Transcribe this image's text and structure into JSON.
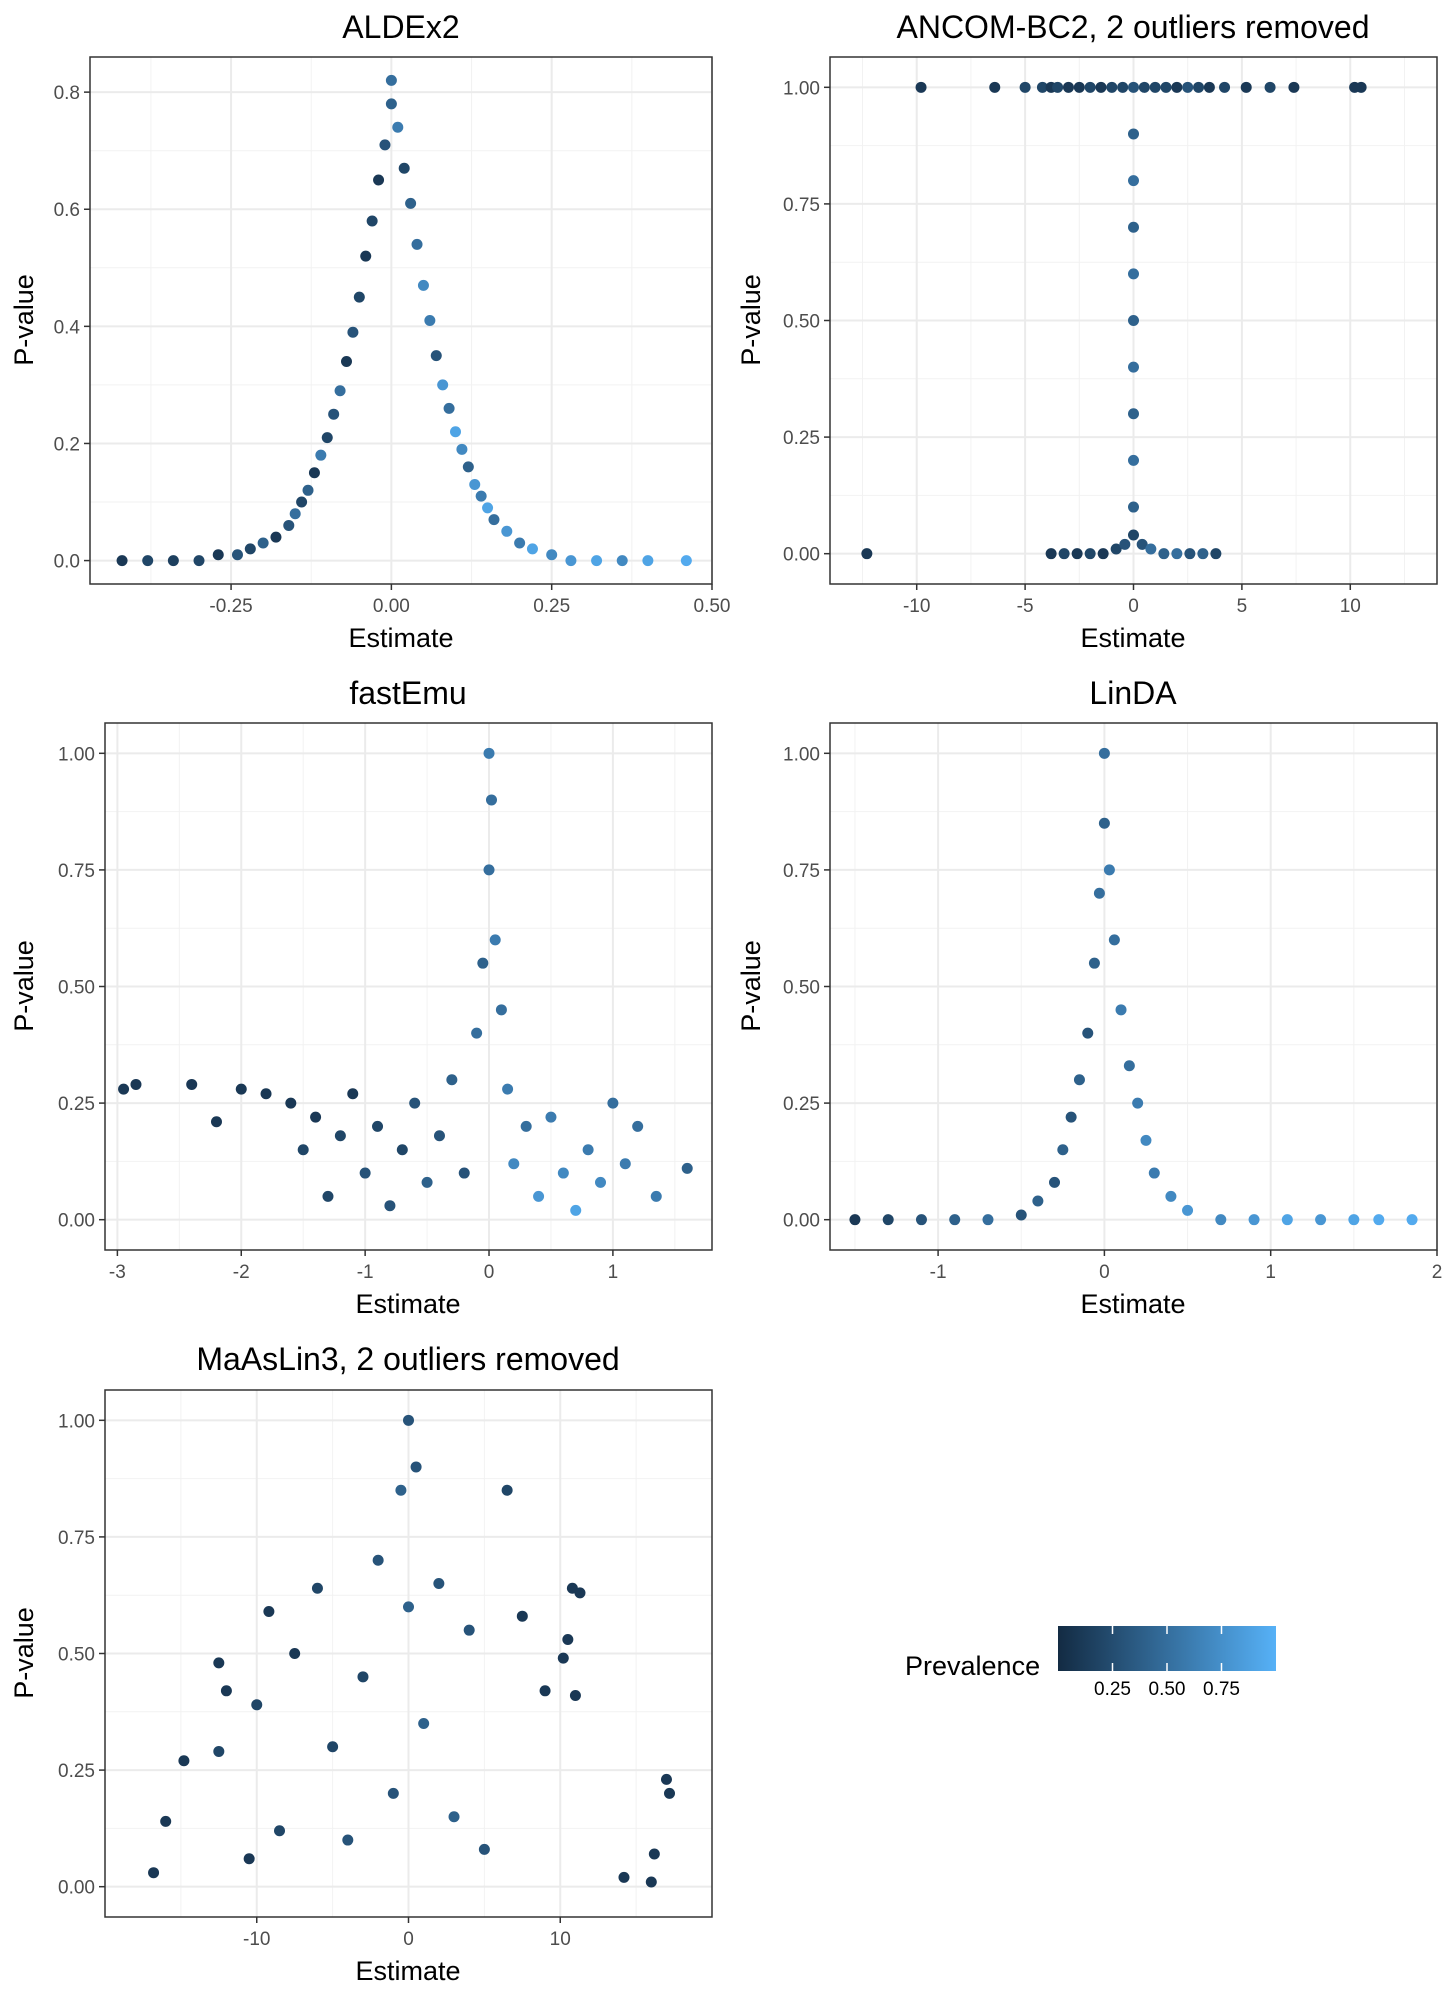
{
  "figure": {
    "description_labels": {
      "ylabel": "P-value",
      "xlabel": "Estimate"
    }
  },
  "legend": {
    "title": "Prevalence",
    "ticks": [
      "0.25",
      "0.50",
      "0.75"
    ],
    "range": [
      0.0,
      1.0
    ],
    "color_low": "#132B43",
    "color_high": "#56B1F7"
  },
  "chart_data": [
    {
      "id": "aldex2",
      "type": "scatter",
      "title": "ALDEx2",
      "xlabel": "Estimate",
      "ylabel": "P-value",
      "xlim": [
        -0.47,
        0.5
      ],
      "ylim": [
        -0.04,
        0.86
      ],
      "xticks": [
        -0.25,
        0.0,
        0.25,
        0.5
      ],
      "xtick_labels": [
        "-0.25",
        "0.00",
        "0.25",
        "0.50"
      ],
      "yticks": [
        0.0,
        0.2,
        0.4,
        0.6,
        0.8
      ],
      "ytick_labels": [
        "0.0",
        "0.2",
        "0.4",
        "0.6",
        "0.8"
      ],
      "points": [
        [
          -0.42,
          0.0,
          0.1
        ],
        [
          -0.38,
          0.0,
          0.2
        ],
        [
          -0.34,
          0.0,
          0.15
        ],
        [
          -0.3,
          0.0,
          0.2
        ],
        [
          -0.27,
          0.01,
          0.1
        ],
        [
          -0.24,
          0.01,
          0.3
        ],
        [
          -0.22,
          0.02,
          0.2
        ],
        [
          -0.2,
          0.03,
          0.4
        ],
        [
          -0.18,
          0.04,
          0.1
        ],
        [
          -0.16,
          0.06,
          0.3
        ],
        [
          -0.15,
          0.08,
          0.5
        ],
        [
          -0.14,
          0.1,
          0.2
        ],
        [
          -0.13,
          0.12,
          0.4
        ],
        [
          -0.12,
          0.15,
          0.1
        ],
        [
          -0.11,
          0.18,
          0.6
        ],
        [
          -0.1,
          0.21,
          0.2
        ],
        [
          -0.09,
          0.25,
          0.3
        ],
        [
          -0.08,
          0.29,
          0.5
        ],
        [
          -0.07,
          0.34,
          0.1
        ],
        [
          -0.06,
          0.39,
          0.3
        ],
        [
          -0.05,
          0.45,
          0.2
        ],
        [
          -0.04,
          0.52,
          0.1
        ],
        [
          -0.03,
          0.58,
          0.2
        ],
        [
          -0.02,
          0.65,
          0.1
        ],
        [
          -0.01,
          0.71,
          0.3
        ],
        [
          0.0,
          0.78,
          0.4
        ],
        [
          0.0,
          0.82,
          0.5
        ],
        [
          0.01,
          0.74,
          0.6
        ],
        [
          0.02,
          0.67,
          0.2
        ],
        [
          0.03,
          0.61,
          0.4
        ],
        [
          0.04,
          0.54,
          0.5
        ],
        [
          0.05,
          0.47,
          0.7
        ],
        [
          0.06,
          0.41,
          0.6
        ],
        [
          0.07,
          0.35,
          0.3
        ],
        [
          0.08,
          0.3,
          0.8
        ],
        [
          0.09,
          0.26,
          0.5
        ],
        [
          0.1,
          0.22,
          0.9
        ],
        [
          0.11,
          0.19,
          0.7
        ],
        [
          0.12,
          0.16,
          0.4
        ],
        [
          0.13,
          0.13,
          0.8
        ],
        [
          0.14,
          0.11,
          0.6
        ],
        [
          0.15,
          0.09,
          0.9
        ],
        [
          0.16,
          0.07,
          0.5
        ],
        [
          0.18,
          0.05,
          0.8
        ],
        [
          0.2,
          0.03,
          0.6
        ],
        [
          0.22,
          0.02,
          0.9
        ],
        [
          0.25,
          0.01,
          0.7
        ],
        [
          0.28,
          0.0,
          0.8
        ],
        [
          0.32,
          0.0,
          0.9
        ],
        [
          0.36,
          0.0,
          0.7
        ],
        [
          0.4,
          0.0,
          0.9
        ],
        [
          0.46,
          0.0,
          0.95
        ]
      ]
    },
    {
      "id": "ancombc2",
      "type": "scatter",
      "title": "ANCOM-BC2, 2 outliers removed",
      "xlabel": "Estimate",
      "ylabel": "P-value",
      "xlim": [
        -14.0,
        14.0
      ],
      "ylim": [
        -0.065,
        1.065
      ],
      "xticks": [
        -10,
        -5,
        0,
        5,
        10
      ],
      "xtick_labels": [
        "-10",
        "-5",
        "0",
        "5",
        "10"
      ],
      "yticks": [
        0.0,
        0.25,
        0.5,
        0.75,
        1.0
      ],
      "ytick_labels": [
        "0.00",
        "0.25",
        "0.50",
        "0.75",
        "1.00"
      ],
      "points": [
        [
          -12.3,
          0.0,
          0.1
        ],
        [
          -9.8,
          1.0,
          0.1
        ],
        [
          -6.4,
          1.0,
          0.1
        ],
        [
          -5.0,
          1.0,
          0.2
        ],
        [
          -4.2,
          1.0,
          0.2
        ],
        [
          -3.8,
          1.0,
          0.1
        ],
        [
          -3.5,
          1.0,
          0.2
        ],
        [
          -3.0,
          1.0,
          0.1
        ],
        [
          -2.5,
          1.0,
          0.1
        ],
        [
          -2.0,
          1.0,
          0.2
        ],
        [
          -1.5,
          1.0,
          0.1
        ],
        [
          -1.0,
          1.0,
          0.2
        ],
        [
          -0.5,
          1.0,
          0.2
        ],
        [
          0.0,
          1.0,
          0.3
        ],
        [
          0.5,
          1.0,
          0.2
        ],
        [
          1.0,
          1.0,
          0.2
        ],
        [
          1.5,
          1.0,
          0.2
        ],
        [
          2.0,
          1.0,
          0.1
        ],
        [
          2.5,
          1.0,
          0.3
        ],
        [
          3.0,
          1.0,
          0.2
        ],
        [
          3.5,
          1.0,
          0.1
        ],
        [
          4.2,
          1.0,
          0.2
        ],
        [
          5.2,
          1.0,
          0.1
        ],
        [
          6.3,
          1.0,
          0.2
        ],
        [
          7.4,
          1.0,
          0.1
        ],
        [
          10.2,
          1.0,
          0.1
        ],
        [
          10.5,
          1.0,
          0.1
        ],
        [
          -3.8,
          0.0,
          0.1
        ],
        [
          -3.2,
          0.0,
          0.2
        ],
        [
          -2.6,
          0.0,
          0.1
        ],
        [
          -2.0,
          0.0,
          0.2
        ],
        [
          -1.4,
          0.0,
          0.1
        ],
        [
          -0.8,
          0.01,
          0.2
        ],
        [
          -0.4,
          0.02,
          0.3
        ],
        [
          0.0,
          0.04,
          0.2
        ],
        [
          0.4,
          0.02,
          0.3
        ],
        [
          0.8,
          0.01,
          0.5
        ],
        [
          1.4,
          0.0,
          0.4
        ],
        [
          2.0,
          0.0,
          0.5
        ],
        [
          2.6,
          0.0,
          0.3
        ],
        [
          3.2,
          0.0,
          0.4
        ],
        [
          3.8,
          0.0,
          0.2
        ],
        [
          0.0,
          0.1,
          0.4
        ],
        [
          0.0,
          0.2,
          0.5
        ],
        [
          0.0,
          0.3,
          0.4
        ],
        [
          0.0,
          0.4,
          0.5
        ],
        [
          0.0,
          0.5,
          0.4
        ],
        [
          0.0,
          0.6,
          0.5
        ],
        [
          0.0,
          0.7,
          0.4
        ],
        [
          0.0,
          0.8,
          0.5
        ],
        [
          0.0,
          0.9,
          0.4
        ]
      ]
    },
    {
      "id": "fastemu",
      "type": "scatter",
      "title": "fastEmu",
      "xlabel": "Estimate",
      "ylabel": "P-value",
      "xlim": [
        -3.1,
        1.8
      ],
      "ylim": [
        -0.065,
        1.065
      ],
      "xticks": [
        -3,
        -2,
        -1,
        0,
        1
      ],
      "xtick_labels": [
        "-3",
        "-2",
        "-1",
        "0",
        "1"
      ],
      "yticks": [
        0.0,
        0.25,
        0.5,
        0.75,
        1.0
      ],
      "ytick_labels": [
        "0.00",
        "0.25",
        "0.50",
        "0.75",
        "1.00"
      ],
      "points": [
        [
          -2.95,
          0.28,
          0.1
        ],
        [
          -2.85,
          0.29,
          0.1
        ],
        [
          -2.4,
          0.29,
          0.1
        ],
        [
          -2.2,
          0.21,
          0.1
        ],
        [
          -2.0,
          0.28,
          0.1
        ],
        [
          -1.8,
          0.27,
          0.1
        ],
        [
          -1.6,
          0.25,
          0.1
        ],
        [
          -1.5,
          0.15,
          0.2
        ],
        [
          -1.4,
          0.22,
          0.1
        ],
        [
          -1.3,
          0.05,
          0.2
        ],
        [
          -1.2,
          0.18,
          0.2
        ],
        [
          -1.1,
          0.27,
          0.1
        ],
        [
          -1.0,
          0.1,
          0.3
        ],
        [
          -0.9,
          0.2,
          0.2
        ],
        [
          -0.8,
          0.03,
          0.3
        ],
        [
          -0.7,
          0.15,
          0.2
        ],
        [
          -0.6,
          0.25,
          0.3
        ],
        [
          -0.5,
          0.08,
          0.4
        ],
        [
          -0.4,
          0.18,
          0.3
        ],
        [
          -0.3,
          0.3,
          0.4
        ],
        [
          -0.2,
          0.1,
          0.3
        ],
        [
          -0.1,
          0.4,
          0.5
        ],
        [
          -0.05,
          0.55,
          0.4
        ],
        [
          0.0,
          0.75,
          0.5
        ],
        [
          0.0,
          1.0,
          0.6
        ],
        [
          0.02,
          0.9,
          0.5
        ],
        [
          0.05,
          0.6,
          0.6
        ],
        [
          0.1,
          0.45,
          0.5
        ],
        [
          0.15,
          0.28,
          0.6
        ],
        [
          0.2,
          0.12,
          0.7
        ],
        [
          0.3,
          0.2,
          0.5
        ],
        [
          0.4,
          0.05,
          0.8
        ],
        [
          0.5,
          0.22,
          0.6
        ],
        [
          0.6,
          0.1,
          0.7
        ],
        [
          0.7,
          0.02,
          0.9
        ],
        [
          0.8,
          0.15,
          0.6
        ],
        [
          0.9,
          0.08,
          0.7
        ],
        [
          1.0,
          0.25,
          0.5
        ],
        [
          1.1,
          0.12,
          0.6
        ],
        [
          1.2,
          0.2,
          0.5
        ],
        [
          1.35,
          0.05,
          0.6
        ],
        [
          1.6,
          0.11,
          0.4
        ]
      ]
    },
    {
      "id": "linda",
      "type": "scatter",
      "title": "LinDA",
      "xlabel": "Estimate",
      "ylabel": "P-value",
      "xlim": [
        -1.65,
        2.0
      ],
      "ylim": [
        -0.065,
        1.065
      ],
      "xticks": [
        -1,
        0,
        1,
        2
      ],
      "xtick_labels": [
        "-1",
        "0",
        "1",
        "2"
      ],
      "yticks": [
        0.0,
        0.25,
        0.5,
        0.75,
        1.0
      ],
      "ytick_labels": [
        "0.00",
        "0.25",
        "0.50",
        "0.75",
        "1.00"
      ],
      "points": [
        [
          -1.5,
          0.0,
          0.1
        ],
        [
          -1.3,
          0.0,
          0.2
        ],
        [
          -1.1,
          0.0,
          0.3
        ],
        [
          -0.9,
          0.0,
          0.4
        ],
        [
          -0.7,
          0.0,
          0.5
        ],
        [
          -0.5,
          0.01,
          0.3
        ],
        [
          -0.4,
          0.04,
          0.4
        ],
        [
          -0.3,
          0.08,
          0.3
        ],
        [
          -0.25,
          0.15,
          0.4
        ],
        [
          -0.2,
          0.22,
          0.3
        ],
        [
          -0.15,
          0.3,
          0.4
        ],
        [
          -0.1,
          0.4,
          0.3
        ],
        [
          -0.06,
          0.55,
          0.4
        ],
        [
          -0.03,
          0.7,
          0.5
        ],
        [
          0.0,
          0.85,
          0.4
        ],
        [
          0.0,
          1.0,
          0.5
        ],
        [
          0.03,
          0.75,
          0.6
        ],
        [
          0.06,
          0.6,
          0.5
        ],
        [
          0.1,
          0.45,
          0.6
        ],
        [
          0.15,
          0.33,
          0.5
        ],
        [
          0.2,
          0.25,
          0.6
        ],
        [
          0.25,
          0.17,
          0.7
        ],
        [
          0.3,
          0.1,
          0.6
        ],
        [
          0.4,
          0.05,
          0.7
        ],
        [
          0.5,
          0.02,
          0.8
        ],
        [
          0.7,
          0.0,
          0.7
        ],
        [
          0.9,
          0.0,
          0.8
        ],
        [
          1.1,
          0.0,
          0.9
        ],
        [
          1.3,
          0.0,
          0.8
        ],
        [
          1.5,
          0.0,
          0.9
        ],
        [
          1.65,
          0.0,
          0.95
        ],
        [
          1.85,
          0.0,
          0.95
        ]
      ]
    },
    {
      "id": "maaslin3",
      "type": "scatter",
      "title": "MaAsLin3, 2 outliers removed",
      "xlabel": "Estimate",
      "ylabel": "P-value",
      "xlim": [
        -20.0,
        20.0
      ],
      "ylim": [
        -0.065,
        1.065
      ],
      "xticks": [
        -10,
        0,
        10
      ],
      "xtick_labels": [
        "-10",
        "0",
        "10"
      ],
      "yticks": [
        0.0,
        0.25,
        0.5,
        0.75,
        1.0
      ],
      "ytick_labels": [
        "0.00",
        "0.25",
        "0.50",
        "0.75",
        "1.00"
      ],
      "points": [
        [
          -16.8,
          0.03,
          0.1
        ],
        [
          -16.0,
          0.14,
          0.1
        ],
        [
          -14.8,
          0.27,
          0.1
        ],
        [
          -12.5,
          0.48,
          0.1
        ],
        [
          -12.0,
          0.42,
          0.1
        ],
        [
          -12.5,
          0.29,
          0.2
        ],
        [
          -10.5,
          0.06,
          0.1
        ],
        [
          -10.0,
          0.39,
          0.2
        ],
        [
          -9.2,
          0.59,
          0.1
        ],
        [
          -8.5,
          0.12,
          0.2
        ],
        [
          -7.5,
          0.5,
          0.1
        ],
        [
          -6.0,
          0.64,
          0.2
        ],
        [
          -5.0,
          0.3,
          0.2
        ],
        [
          -4.0,
          0.1,
          0.3
        ],
        [
          -3.0,
          0.45,
          0.2
        ],
        [
          -2.0,
          0.7,
          0.3
        ],
        [
          -1.0,
          0.2,
          0.3
        ],
        [
          -0.5,
          0.85,
          0.4
        ],
        [
          0.0,
          1.0,
          0.3
        ],
        [
          0.0,
          0.6,
          0.4
        ],
        [
          0.5,
          0.9,
          0.3
        ],
        [
          1.0,
          0.35,
          0.4
        ],
        [
          2.0,
          0.65,
          0.3
        ],
        [
          3.0,
          0.15,
          0.4
        ],
        [
          4.0,
          0.55,
          0.3
        ],
        [
          5.0,
          0.08,
          0.3
        ],
        [
          6.5,
          0.85,
          0.2
        ],
        [
          7.5,
          0.58,
          0.1
        ],
        [
          9.0,
          0.42,
          0.1
        ],
        [
          10.2,
          0.49,
          0.1
        ],
        [
          10.5,
          0.53,
          0.1
        ],
        [
          11.0,
          0.41,
          0.1
        ],
        [
          10.8,
          0.64,
          0.1
        ],
        [
          11.3,
          0.63,
          0.1
        ],
        [
          14.2,
          0.02,
          0.1
        ],
        [
          16.0,
          0.01,
          0.1
        ],
        [
          16.2,
          0.07,
          0.1
        ],
        [
          17.0,
          0.23,
          0.1
        ],
        [
          17.2,
          0.2,
          0.1
        ]
      ]
    }
  ]
}
